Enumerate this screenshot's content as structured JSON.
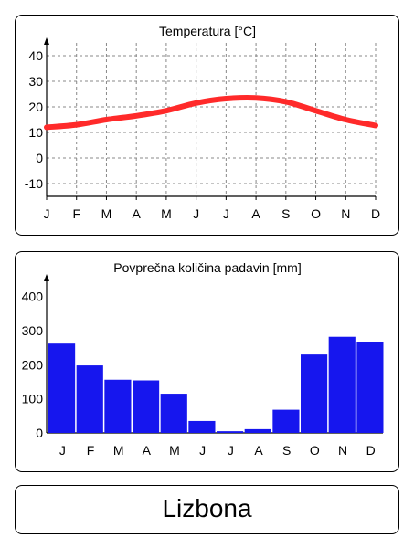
{
  "city": {
    "name": "Lizbona"
  },
  "colors": {
    "temperature_line": "#ff2a2a",
    "precipitation_bar": "#1616ee",
    "grid": "#888888"
  },
  "chart_data": [
    {
      "type": "line",
      "title": "Temperatura [°C]",
      "categories": [
        "J",
        "F",
        "M",
        "A",
        "M",
        "J",
        "J",
        "A",
        "S",
        "O",
        "N",
        "D"
      ],
      "ylim": [
        -15,
        45
      ],
      "yticks": [
        40,
        30,
        20,
        10,
        0,
        -10
      ],
      "grid": true,
      "series": [
        {
          "values": [
            12,
            13,
            15,
            16.5,
            18.5,
            21.5,
            23.2,
            23.5,
            22,
            18.5,
            15,
            12.7
          ]
        }
      ]
    },
    {
      "type": "bar",
      "title": "Povprečna količina padavin [mm]",
      "categories": [
        "J",
        "F",
        "M",
        "A",
        "M",
        "J",
        "J",
        "A",
        "S",
        "O",
        "N",
        "D"
      ],
      "ylim": [
        0,
        450
      ],
      "yticks": [
        400,
        300,
        200,
        100,
        0
      ],
      "grid": false,
      "series": [
        {
          "values": [
            262,
            198,
            156,
            154,
            115,
            35,
            5,
            11,
            68,
            230,
            282,
            267
          ]
        }
      ]
    }
  ]
}
